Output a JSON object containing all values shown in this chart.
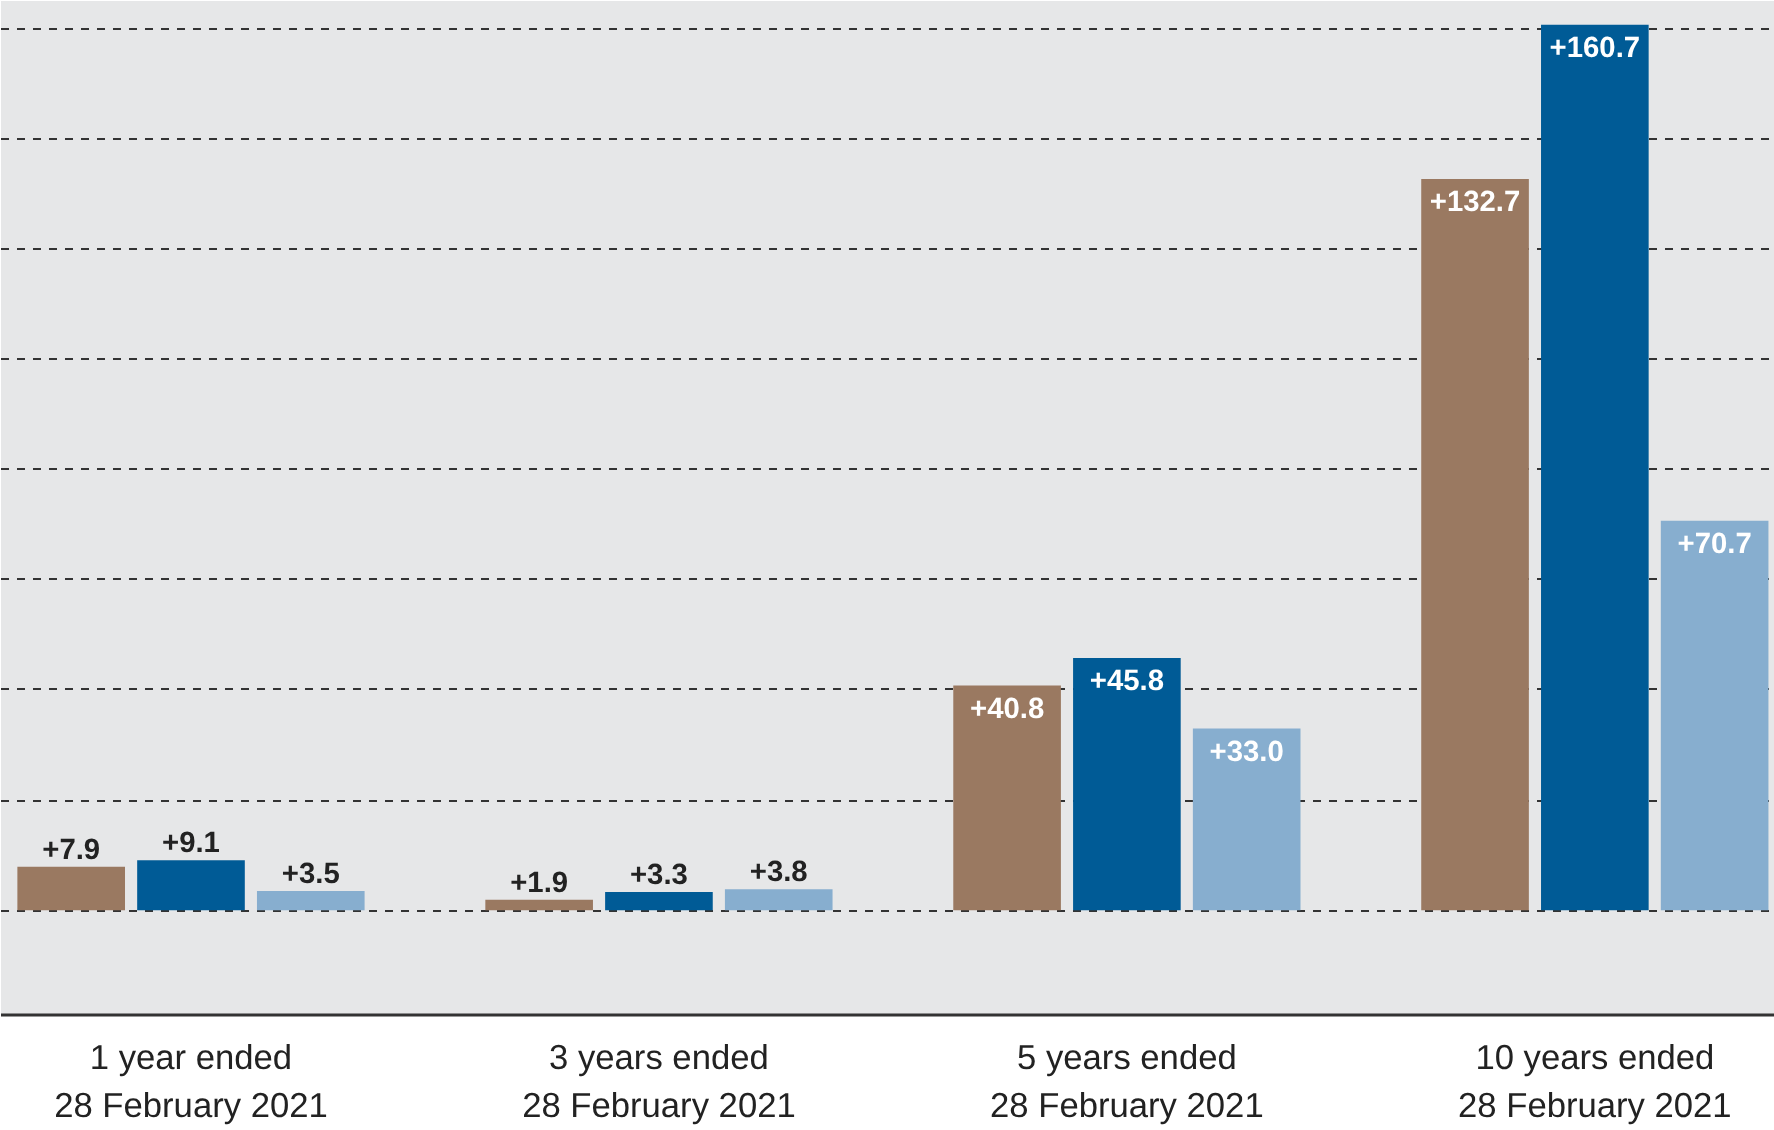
{
  "chart_data": {
    "type": "bar",
    "categories": [
      "1 year ended\n28 February 2021",
      "3 years ended\n28 February 2021",
      "5 years ended\n28 February 2021",
      "10 years ended\n28 February 2021"
    ],
    "series": [
      {
        "color": "#9a7961",
        "values": [
          7.9,
          1.9,
          40.8,
          132.7
        ],
        "value_labels": [
          "+7.9",
          "+1.9",
          "+40.8",
          "+132.7"
        ]
      },
      {
        "color": "#005b96",
        "values": [
          9.1,
          3.3,
          45.8,
          160.7
        ],
        "value_labels": [
          "+9.1",
          "+3.3",
          "+45.8",
          "+160.7"
        ]
      },
      {
        "color": "#87aecf",
        "values": [
          3.5,
          3.8,
          33.0,
          70.7
        ],
        "value_labels": [
          "+3.5",
          "+3.8",
          "+33.0",
          "+70.7"
        ]
      }
    ],
    "ylim": [
      -19,
      165
    ],
    "yticks": [
      {
        "value": 0,
        "label": null
      },
      {
        "value": 20,
        "label": null
      },
      {
        "value": 40,
        "label": null
      },
      {
        "value": 60,
        "label": null
      },
      {
        "value": 80,
        "label": null
      },
      {
        "value": 100,
        "label": null
      },
      {
        "value": 120,
        "label": null
      },
      {
        "value": 140,
        "label": null
      },
      {
        "value": 160,
        "label": null
      }
    ],
    "grid": "y",
    "tick_labels": "x"
  }
}
